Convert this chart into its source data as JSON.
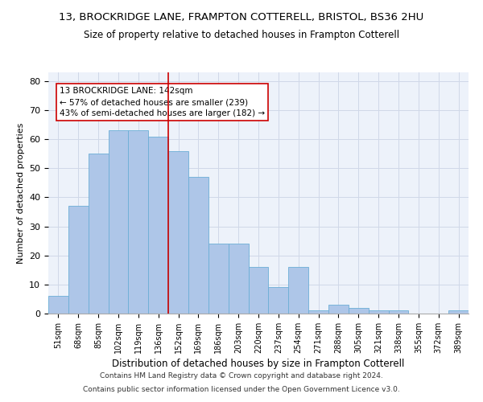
{
  "title1": "13, BROCKRIDGE LANE, FRAMPTON COTTERELL, BRISTOL, BS36 2HU",
  "title2": "Size of property relative to detached houses in Frampton Cotterell",
  "xlabel": "Distribution of detached houses by size in Frampton Cotterell",
  "ylabel": "Number of detached properties",
  "footer1": "Contains HM Land Registry data © Crown copyright and database right 2024.",
  "footer2": "Contains public sector information licensed under the Open Government Licence v3.0.",
  "bar_labels": [
    "51sqm",
    "68sqm",
    "85sqm",
    "102sqm",
    "119sqm",
    "136sqm",
    "152sqm",
    "169sqm",
    "186sqm",
    "203sqm",
    "220sqm",
    "237sqm",
    "254sqm",
    "271sqm",
    "288sqm",
    "305sqm",
    "321sqm",
    "338sqm",
    "355sqm",
    "372sqm",
    "389sqm"
  ],
  "bar_values": [
    6,
    37,
    55,
    63,
    63,
    61,
    56,
    47,
    24,
    24,
    16,
    9,
    16,
    1,
    3,
    2,
    1,
    1,
    0,
    0,
    1
  ],
  "bar_color": "#aec6e8",
  "bar_edgecolor": "#6baed6",
  "vline_x": 5.5,
  "vline_color": "#cc0000",
  "annotation_text": "13 BROCKRIDGE LANE: 142sqm\n← 57% of detached houses are smaller (239)\n43% of semi-detached houses are larger (182) →",
  "annotation_box_edgecolor": "#cc0000",
  "ylim": [
    0,
    83
  ],
  "yticks": [
    0,
    10,
    20,
    30,
    40,
    50,
    60,
    70,
    80
  ],
  "grid_color": "#d0d8e8",
  "bg_color": "#edf2fa",
  "title1_fontsize": 9.5,
  "title2_fontsize": 8.5,
  "xlabel_fontsize": 8.5,
  "ylabel_fontsize": 8,
  "annotation_fontsize": 7.5,
  "footer_fontsize": 6.5
}
